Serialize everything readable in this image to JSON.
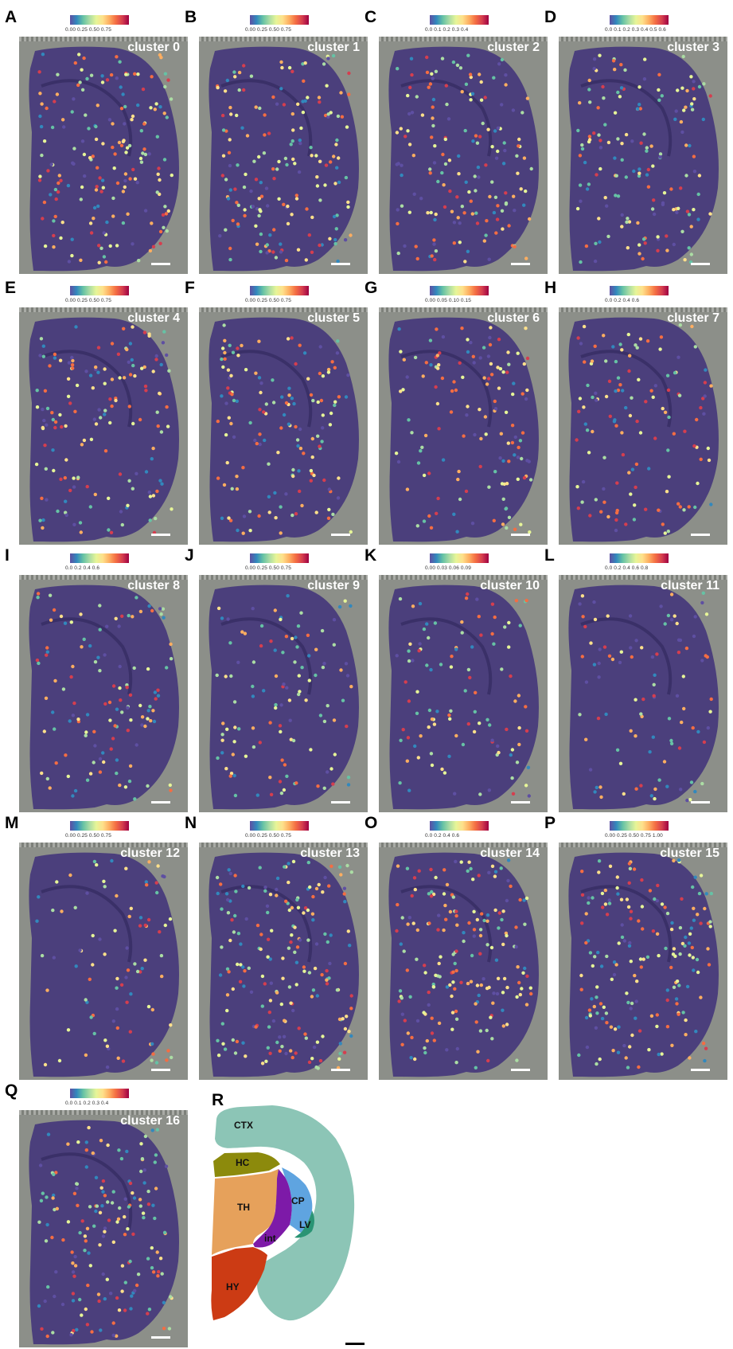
{
  "panels": [
    {
      "letter": "A",
      "cluster": "cluster 0",
      "ticks": "0.00  0.25  0.50  0.75"
    },
    {
      "letter": "B",
      "cluster": "cluster 1",
      "ticks": "0.00  0.25  0.50  0.75"
    },
    {
      "letter": "C",
      "cluster": "cluster 2",
      "ticks": "0.0  0.1  0.2  0.3  0.4"
    },
    {
      "letter": "D",
      "cluster": "cluster 3",
      "ticks": "0.0 0.1 0.2 0.3 0.4 0.5 0.6"
    },
    {
      "letter": "E",
      "cluster": "cluster 4",
      "ticks": "0.00  0.25  0.50  0.75"
    },
    {
      "letter": "F",
      "cluster": "cluster 5",
      "ticks": "0.00  0.25  0.50  0.75"
    },
    {
      "letter": "G",
      "cluster": "cluster 6",
      "ticks": "0.00  0.05  0.10  0.15"
    },
    {
      "letter": "H",
      "cluster": "cluster 7",
      "ticks": "0.0    0.2    0.4    0.6"
    },
    {
      "letter": "I",
      "cluster": "cluster 8",
      "ticks": "0.0   0.2   0.4   0.6"
    },
    {
      "letter": "J",
      "cluster": "cluster 9",
      "ticks": "0.00  0.25  0.50  0.75"
    },
    {
      "letter": "K",
      "cluster": "cluster 10",
      "ticks": "0.00 0.03 0.06 0.09"
    },
    {
      "letter": "L",
      "cluster": "cluster 11",
      "ticks": "0.0 0.2 0.4 0.6 0.8"
    },
    {
      "letter": "M",
      "cluster": "cluster 12",
      "ticks": "0.00  0.25  0.50  0.75"
    },
    {
      "letter": "N",
      "cluster": "cluster 13",
      "ticks": "0.00  0.25  0.50  0.75"
    },
    {
      "letter": "O",
      "cluster": "cluster 14",
      "ticks": "0.0   0.2   0.4   0.6"
    },
    {
      "letter": "P",
      "cluster": "cluster 15",
      "ticks": "0.00 0.25 0.50 0.75 1.00"
    },
    {
      "letter": "Q",
      "cluster": "cluster 16",
      "ticks": "0.0  0.1  0.2  0.3  0.4"
    }
  ],
  "atlas": {
    "letter": "R",
    "regions": {
      "ctx": "CTX",
      "hc": "HC",
      "th": "TH",
      "cp": "CP",
      "lv": "LV",
      "int": "int",
      "hy": "HY"
    },
    "colors": {
      "ctx": "#8cc5b6",
      "hc": "#8c8a0c",
      "th": "#e6a15b",
      "cp": "#5fa4e0",
      "lv": "#2a9474",
      "int": "#7d1aa8",
      "hy": "#cc3b14"
    }
  },
  "colors": {
    "tissue_base": "#4b3f7c",
    "background": "#8c8f89"
  }
}
